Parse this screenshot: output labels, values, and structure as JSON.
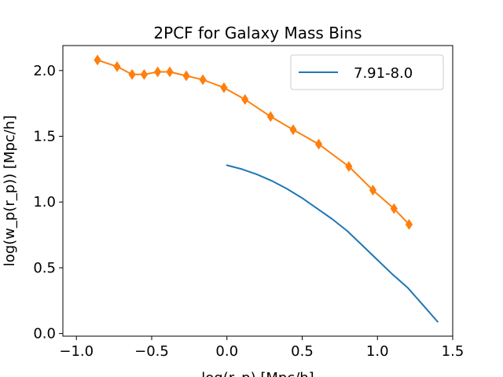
{
  "chart_data": {
    "type": "line",
    "title": "2PCF for Galaxy Mass Bins",
    "xlabel": "log(r_p) [Mpc/h]",
    "ylabel": "log(w_p(r_p)) [Mpc/h]",
    "xlim": [
      -1.09,
      1.5
    ],
    "ylim": [
      -0.02,
      2.19
    ],
    "xticks": [
      -1.0,
      -0.5,
      0.0,
      0.5,
      1.0,
      1.5
    ],
    "xtick_labels": [
      "−1.0",
      "−0.5",
      "0.0",
      "0.5",
      "1.0",
      "1.5"
    ],
    "yticks": [
      0.0,
      0.5,
      1.0,
      1.5,
      2.0
    ],
    "ytick_labels": [
      "0.0",
      "0.5",
      "1.0",
      "1.5",
      "2.0"
    ],
    "grid": false,
    "legend_position": "top-right",
    "series": [
      {
        "name": "7.91-8.0",
        "color": "#1f77b4",
        "marker": "none",
        "x": [
          0.0,
          0.1,
          0.2,
          0.3,
          0.4,
          0.5,
          0.6,
          0.7,
          0.8,
          0.9,
          1.0,
          1.1,
          1.2,
          1.3,
          1.4
        ],
        "y": [
          1.28,
          1.25,
          1.21,
          1.16,
          1.1,
          1.03,
          0.95,
          0.87,
          0.78,
          0.67,
          0.56,
          0.45,
          0.35,
          0.22,
          0.09
        ]
      },
      {
        "color": "#ff7f0e",
        "marker": "thin_diamond",
        "x": [
          -0.86,
          -0.73,
          -0.63,
          -0.55,
          -0.46,
          -0.38,
          -0.27,
          -0.16,
          -0.02,
          0.12,
          0.29,
          0.44,
          0.61,
          0.81,
          0.97,
          1.11,
          1.21
        ],
        "y": [
          2.08,
          2.03,
          1.97,
          1.97,
          1.99,
          1.99,
          1.96,
          1.93,
          1.87,
          1.78,
          1.65,
          1.55,
          1.44,
          1.27,
          1.09,
          0.95,
          0.83
        ]
      }
    ]
  }
}
